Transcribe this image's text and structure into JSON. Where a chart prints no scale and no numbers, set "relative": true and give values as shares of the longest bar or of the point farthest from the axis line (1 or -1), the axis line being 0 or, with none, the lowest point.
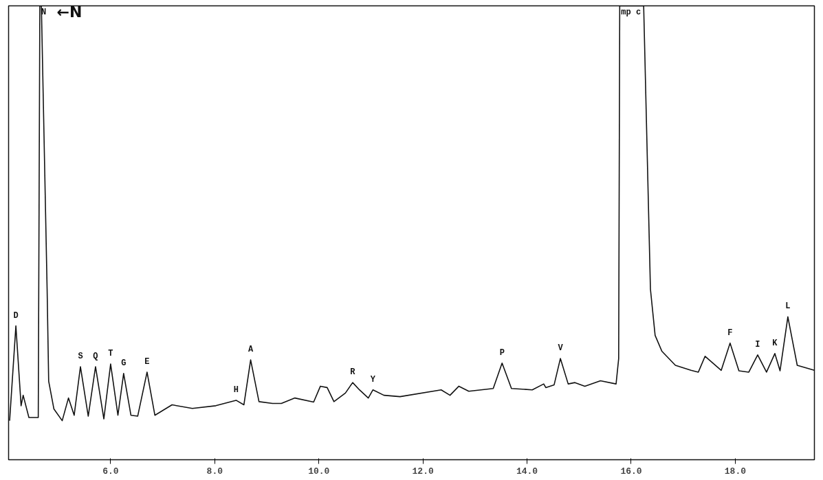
{
  "chart_data": {
    "type": "line",
    "relative": true,
    "xlim": [
      4.04,
      19.52
    ],
    "xticks": [
      {
        "value": 6,
        "label": "6.0"
      },
      {
        "value": 8,
        "label": "8.0"
      },
      {
        "value": 10,
        "label": "10.0"
      },
      {
        "value": 12,
        "label": "12.0"
      },
      {
        "value": 14,
        "label": "14.0"
      },
      {
        "value": 16,
        "label": "16.0"
      },
      {
        "value": 18,
        "label": "18.0"
      }
    ],
    "tick_labels": "x",
    "grid": false,
    "series": [
      {
        "color": "#111111",
        "x": [
          4.06,
          4.18,
          4.28,
          4.32,
          4.43,
          4.58,
          4.61,
          4.64,
          4.67,
          4.78,
          4.81,
          4.91,
          5.07,
          5.19,
          5.3,
          5.42,
          5.57,
          5.71,
          5.87,
          6.0,
          6.14,
          6.25,
          6.39,
          6.52,
          6.7,
          6.85,
          7.18,
          7.57,
          8.02,
          8.41,
          8.56,
          8.69,
          8.85,
          9.11,
          9.28,
          9.54,
          9.9,
          10.03,
          10.16,
          10.29,
          10.51,
          10.65,
          10.78,
          10.95,
          11.04,
          11.25,
          11.56,
          12.35,
          12.52,
          12.69,
          12.88,
          13.35,
          13.52,
          13.7,
          14.1,
          14.32,
          14.36,
          14.52,
          14.64,
          14.79,
          14.92,
          15.11,
          15.41,
          15.71,
          15.76,
          15.78,
          16.24,
          16.37,
          16.46,
          16.59,
          16.85,
          17.15,
          17.29,
          17.42,
          17.73,
          17.9,
          18.07,
          18.26,
          18.43,
          18.6,
          18.76,
          18.86,
          19.01,
          19.19,
          19.52
        ],
        "values": [
          0.086,
          0.295,
          0.119,
          0.142,
          0.093,
          0.093,
          0.093,
          1,
          1,
          0.376,
          0.173,
          0.112,
          0.086,
          0.136,
          0.098,
          0.205,
          0.096,
          0.205,
          0.09,
          0.211,
          0.098,
          0.19,
          0.098,
          0.096,
          0.193,
          0.098,
          0.121,
          0.113,
          0.119,
          0.131,
          0.121,
          0.22,
          0.128,
          0.124,
          0.124,
          0.136,
          0.127,
          0.162,
          0.159,
          0.128,
          0.147,
          0.17,
          0.154,
          0.136,
          0.154,
          0.142,
          0.139,
          0.154,
          0.142,
          0.162,
          0.151,
          0.157,
          0.213,
          0.157,
          0.154,
          0.167,
          0.159,
          0.165,
          0.223,
          0.167,
          0.17,
          0.162,
          0.174,
          0.167,
          0.223,
          1,
          1,
          0.376,
          0.274,
          0.239,
          0.208,
          0.197,
          0.193,
          0.228,
          0.197,
          0.257,
          0.196,
          0.193,
          0.231,
          0.193,
          0.234,
          0.196,
          0.315,
          0.208,
          0.197
        ]
      }
    ],
    "annotations": [
      "←N",
      {
        "text": "D",
        "x": 4.18,
        "y": 0.295
      },
      {
        "text": "N",
        "x": 4.64,
        "y": 1
      },
      {
        "text": "S",
        "x": 5.42,
        "y": 0.205
      },
      {
        "text": "Q",
        "x": 5.71,
        "y": 0.205
      },
      {
        "text": "T",
        "x": 6.0,
        "y": 0.211
      },
      {
        "text": "G",
        "x": 6.25,
        "y": 0.19
      },
      {
        "text": "E",
        "x": 6.7,
        "y": 0.193
      },
      {
        "text": "H",
        "x": 8.41,
        "y": 0.131
      },
      {
        "text": "A",
        "x": 8.69,
        "y": 0.22
      },
      {
        "text": "R",
        "x": 10.65,
        "y": 0.17
      },
      {
        "text": "Y",
        "x": 11.04,
        "y": 0.154
      },
      {
        "text": "P",
        "x": 13.52,
        "y": 0.213
      },
      {
        "text": "V",
        "x": 14.64,
        "y": 0.223
      },
      {
        "text": "mp c",
        "x": 15.78,
        "y": 1
      },
      {
        "text": "F",
        "x": 17.9,
        "y": 0.257
      },
      {
        "text": "I",
        "x": 18.43,
        "y": 0.231
      },
      {
        "text": "K",
        "x": 18.76,
        "y": 0.234
      },
      {
        "text": "L",
        "x": 19.01,
        "y": 0.315
      }
    ]
  }
}
